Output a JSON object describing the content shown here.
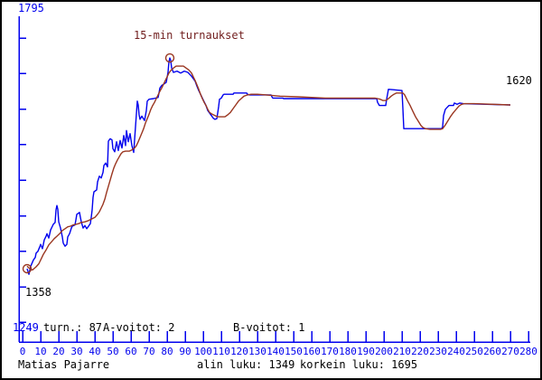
{
  "title": "15-min turnaukset",
  "colors": {
    "axis": "#0000ee",
    "rating_line": "#0000ee",
    "average_line": "#9a3620",
    "marker": "#9a3620",
    "title_text": "#701d1d",
    "text": "#000000",
    "background": "#ffffff"
  },
  "labels": {
    "y_max": "1795",
    "y_min": "1249",
    "start_rating": "1358",
    "final_rating": "1620"
  },
  "stats_row": {
    "turn_count": "turn.: 87",
    "a_wins": "A-voitot: 2",
    "b_wins": "B-voitot: 1"
  },
  "status_bar": {
    "player": "Matias Pajarre",
    "min_rating": "alin luku: 1349",
    "max_rating": "korkein luku: 1695"
  },
  "chart_data": {
    "type": "line",
    "title": "15-min turnaukset",
    "xlabel": "",
    "ylabel": "",
    "x_range": [
      0,
      280
    ],
    "y_axis_top": 1795,
    "y_axis_bottom": 1249,
    "grid": false,
    "legend": "none",
    "tournaments": 87,
    "a_wins": 2,
    "b_wins": 1,
    "first_rating": 1358,
    "last_rating": 1620,
    "min_rating": 1349,
    "max_rating": 1695,
    "x_tick_labels": [
      "0",
      "10",
      "20",
      "30",
      "40",
      "50",
      "60",
      "70",
      "80",
      "90",
      "100",
      "110",
      "120",
      "130",
      "140",
      "150",
      "160",
      "170",
      "180",
      "190",
      "200",
      "210",
      "220",
      "230",
      "240",
      "250",
      "260",
      "270",
      "280"
    ],
    "markers": [
      {
        "x": 2.5,
        "rating": 1358,
        "meaning": "first value"
      },
      {
        "x": 81.5,
        "rating": 1695,
        "meaning": "peak value"
      }
    ],
    "series": [
      {
        "id": "rating",
        "name": "tournament rating",
        "color": "#0000ee",
        "points": [
          [
            2.5,
            1358
          ],
          [
            3.5,
            1349
          ],
          [
            4.5,
            1362
          ],
          [
            6,
            1372
          ],
          [
            7,
            1376
          ],
          [
            7.5,
            1383
          ],
          [
            8.5,
            1386
          ],
          [
            9.5,
            1393
          ],
          [
            10,
            1397
          ],
          [
            11,
            1390
          ],
          [
            12,
            1404
          ],
          [
            13,
            1410
          ],
          [
            13.5,
            1414
          ],
          [
            14.5,
            1407
          ],
          [
            15.5,
            1420
          ],
          [
            16.5,
            1426
          ],
          [
            17,
            1429
          ],
          [
            18,
            1432
          ],
          [
            18.5,
            1452
          ],
          [
            19,
            1459
          ],
          [
            19.5,
            1453
          ],
          [
            20,
            1433
          ],
          [
            21,
            1423
          ],
          [
            22,
            1409
          ],
          [
            22.5,
            1399
          ],
          [
            23.5,
            1394
          ],
          [
            24.5,
            1397
          ],
          [
            25,
            1409
          ],
          [
            26,
            1414
          ],
          [
            27,
            1423
          ],
          [
            27.5,
            1426
          ],
          [
            29,
            1428
          ],
          [
            29.5,
            1436
          ],
          [
            30,
            1445
          ],
          [
            31.5,
            1448
          ],
          [
            32,
            1440
          ],
          [
            32.5,
            1433
          ],
          [
            33.5,
            1423
          ],
          [
            34.5,
            1427
          ],
          [
            35.5,
            1422
          ],
          [
            36.5,
            1426
          ],
          [
            37.5,
            1430
          ],
          [
            38,
            1440
          ],
          [
            38.5,
            1452
          ],
          [
            39,
            1472
          ],
          [
            39.5,
            1481
          ],
          [
            41,
            1484
          ],
          [
            41.5,
            1497
          ],
          [
            42.5,
            1506
          ],
          [
            43.5,
            1503
          ],
          [
            44.5,
            1512
          ],
          [
            45,
            1523
          ],
          [
            46,
            1527
          ],
          [
            47,
            1521
          ],
          [
            47.5,
            1562
          ],
          [
            48.5,
            1566
          ],
          [
            49.5,
            1564
          ],
          [
            50,
            1550
          ],
          [
            51,
            1545
          ],
          [
            52,
            1561
          ],
          [
            53,
            1547
          ],
          [
            54,
            1563
          ],
          [
            55,
            1551
          ],
          [
            56,
            1571
          ],
          [
            57,
            1555
          ],
          [
            57.5,
            1579
          ],
          [
            58.5,
            1561
          ],
          [
            59.5,
            1574
          ],
          [
            60.5,
            1555
          ],
          [
            61.5,
            1544
          ],
          [
            62.5,
            1585
          ],
          [
            63.5,
            1626
          ],
          [
            64,
            1620
          ],
          [
            64.5,
            1604
          ],
          [
            65,
            1597
          ],
          [
            66,
            1602
          ],
          [
            67.5,
            1595
          ],
          [
            68.5,
            1611
          ],
          [
            69,
            1626
          ],
          [
            70,
            1629
          ],
          [
            72.5,
            1630
          ],
          [
            75,
            1632
          ],
          [
            75.5,
            1639
          ],
          [
            76,
            1647
          ],
          [
            77,
            1651
          ],
          [
            78,
            1653
          ],
          [
            79.5,
            1656
          ],
          [
            80.5,
            1672
          ],
          [
            81,
            1689
          ],
          [
            81.5,
            1695
          ],
          [
            82,
            1691
          ],
          [
            82.5,
            1679
          ],
          [
            83.5,
            1672
          ],
          [
            85.5,
            1674
          ],
          [
            87.5,
            1671
          ],
          [
            89.5,
            1674
          ],
          [
            91.5,
            1672
          ],
          [
            93.5,
            1666
          ],
          [
            94.5,
            1662
          ],
          [
            95.5,
            1658
          ],
          [
            96.5,
            1650
          ],
          [
            97.5,
            1643
          ],
          [
            98.5,
            1637
          ],
          [
            99.5,
            1631
          ],
          [
            100.5,
            1625
          ],
          [
            101.5,
            1619
          ],
          [
            102.5,
            1611
          ],
          [
            103.5,
            1607
          ],
          [
            104.5,
            1603
          ],
          [
            105.5,
            1599
          ],
          [
            106.5,
            1597
          ],
          [
            107.5,
            1598
          ],
          [
            108,
            1607
          ],
          [
            108.5,
            1617
          ],
          [
            109,
            1629
          ],
          [
            110,
            1631
          ],
          [
            111,
            1636
          ],
          [
            111.5,
            1637
          ],
          [
            116.5,
            1637
          ],
          [
            117,
            1639
          ],
          [
            124,
            1639
          ],
          [
            124.5,
            1637
          ],
          [
            125.5,
            1636
          ],
          [
            137.5,
            1636
          ],
          [
            138,
            1633
          ],
          [
            138.5,
            1631
          ],
          [
            144,
            1631
          ],
          [
            144.5,
            1630
          ],
          [
            196,
            1630
          ],
          [
            196.5,
            1624
          ],
          [
            197.5,
            1619
          ],
          [
            201,
            1619
          ],
          [
            201.5,
            1629
          ],
          [
            202,
            1637
          ],
          [
            202.5,
            1645
          ],
          [
            210,
            1643
          ],
          [
            210.5,
            1614
          ],
          [
            211,
            1582
          ],
          [
            232,
            1582
          ],
          [
            232.5,
            1585
          ],
          [
            233,
            1603
          ],
          [
            234,
            1613
          ],
          [
            235,
            1616
          ],
          [
            236,
            1619
          ],
          [
            238.5,
            1619
          ],
          [
            239,
            1623
          ],
          [
            240.5,
            1621
          ],
          [
            242,
            1623
          ],
          [
            244,
            1622
          ],
          [
            270,
            1620
          ]
        ]
      },
      {
        "id": "average",
        "name": "smoothed rating",
        "color": "#9a3620",
        "points": [
          [
            2.5,
            1362
          ],
          [
            4,
            1358
          ],
          [
            5.5,
            1356
          ],
          [
            7.5,
            1361
          ],
          [
            9,
            1366
          ],
          [
            10.5,
            1375
          ],
          [
            11.5,
            1381
          ],
          [
            13,
            1388
          ],
          [
            14.5,
            1396
          ],
          [
            16,
            1401
          ],
          [
            17.5,
            1406
          ],
          [
            19,
            1410
          ],
          [
            20.5,
            1414
          ],
          [
            22,
            1419
          ],
          [
            23.5,
            1422
          ],
          [
            25,
            1425
          ],
          [
            26.5,
            1426
          ],
          [
            28,
            1428
          ],
          [
            29.5,
            1429
          ],
          [
            31,
            1430
          ],
          [
            32.5,
            1432
          ],
          [
            34.5,
            1433
          ],
          [
            36.5,
            1435
          ],
          [
            38.5,
            1438
          ],
          [
            40,
            1440
          ],
          [
            41.5,
            1445
          ],
          [
            42.5,
            1449
          ],
          [
            43.5,
            1455
          ],
          [
            44.5,
            1461
          ],
          [
            45.5,
            1469
          ],
          [
            46.5,
            1480
          ],
          [
            47.5,
            1490
          ],
          [
            48.5,
            1500
          ],
          [
            49.5,
            1510
          ],
          [
            50.5,
            1519
          ],
          [
            51.5,
            1526
          ],
          [
            52.5,
            1532
          ],
          [
            53.5,
            1537
          ],
          [
            54.5,
            1542
          ],
          [
            55.5,
            1545
          ],
          [
            57,
            1546
          ],
          [
            59,
            1546
          ],
          [
            60.5,
            1548
          ],
          [
            62,
            1551
          ],
          [
            63,
            1555
          ],
          [
            64,
            1561
          ],
          [
            65,
            1568
          ],
          [
            66,
            1575
          ],
          [
            67,
            1582
          ],
          [
            68,
            1591
          ],
          [
            69,
            1598
          ],
          [
            70,
            1605
          ],
          [
            71,
            1613
          ],
          [
            72,
            1619
          ],
          [
            73,
            1624
          ],
          [
            74,
            1630
          ],
          [
            75,
            1636
          ],
          [
            76,
            1642
          ],
          [
            77,
            1647
          ],
          [
            78,
            1653
          ],
          [
            79,
            1659
          ],
          [
            80,
            1665
          ],
          [
            81,
            1671
          ],
          [
            82,
            1675
          ],
          [
            83.5,
            1679
          ],
          [
            85,
            1682
          ],
          [
            89,
            1682
          ],
          [
            90.5,
            1679
          ],
          [
            92,
            1676
          ],
          [
            93.5,
            1671
          ],
          [
            94.5,
            1665
          ],
          [
            95.5,
            1659
          ],
          [
            96.5,
            1652
          ],
          [
            97.5,
            1645
          ],
          [
            98.5,
            1637
          ],
          [
            99.5,
            1630
          ],
          [
            100.5,
            1624
          ],
          [
            101.5,
            1619
          ],
          [
            102.5,
            1613
          ],
          [
            103.5,
            1608
          ],
          [
            105,
            1605
          ],
          [
            106.5,
            1603
          ],
          [
            108,
            1601
          ],
          [
            112,
            1601
          ],
          [
            113.5,
            1604
          ],
          [
            115,
            1608
          ],
          [
            116.5,
            1614
          ],
          [
            118,
            1620
          ],
          [
            119.5,
            1626
          ],
          [
            121,
            1630
          ],
          [
            122.5,
            1634
          ],
          [
            124.5,
            1636
          ],
          [
            126.5,
            1637
          ],
          [
            130,
            1637
          ],
          [
            135,
            1636
          ],
          [
            142.5,
            1634
          ],
          [
            152.5,
            1633
          ],
          [
            167.5,
            1631
          ],
          [
            187.5,
            1631
          ],
          [
            195,
            1631
          ],
          [
            196.5,
            1630
          ],
          [
            198,
            1629
          ],
          [
            199.5,
            1627
          ],
          [
            201,
            1627
          ],
          [
            202.5,
            1630
          ],
          [
            204,
            1634
          ],
          [
            205.5,
            1637
          ],
          [
            207,
            1639
          ],
          [
            210.5,
            1639
          ],
          [
            211.5,
            1636
          ],
          [
            213,
            1627
          ],
          [
            214.5,
            1619
          ],
          [
            216,
            1610
          ],
          [
            217.5,
            1601
          ],
          [
            219,
            1594
          ],
          [
            220.5,
            1587
          ],
          [
            221.5,
            1584
          ],
          [
            223,
            1582
          ],
          [
            225.5,
            1581
          ],
          [
            231.5,
            1581
          ],
          [
            232.5,
            1582
          ],
          [
            234,
            1588
          ],
          [
            235.5,
            1595
          ],
          [
            237,
            1602
          ],
          [
            238.5,
            1608
          ],
          [
            240,
            1613
          ],
          [
            241.5,
            1618
          ],
          [
            243,
            1621
          ],
          [
            244.5,
            1622
          ],
          [
            250,
            1622
          ],
          [
            270,
            1620
          ]
        ]
      }
    ]
  }
}
